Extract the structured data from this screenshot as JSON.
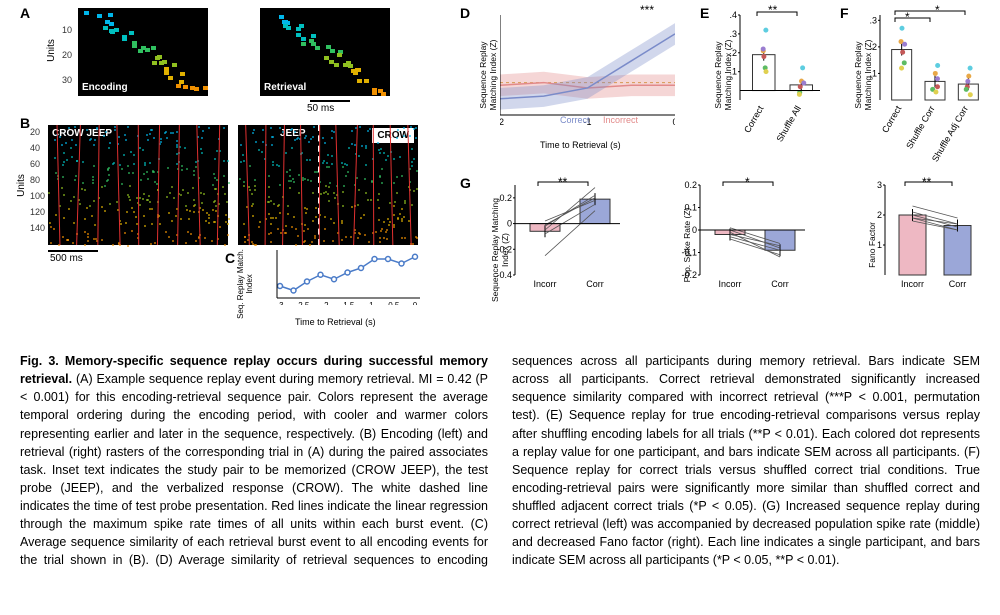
{
  "panel_labels": {
    "A": "A",
    "B": "B",
    "C": "C",
    "D": "D",
    "E": "E",
    "F": "F",
    "G": "G"
  },
  "A": {
    "left_label": "Encoding",
    "right_label": "Retrieval",
    "y_label": "Units",
    "y_ticks": [
      "10",
      "20",
      "30"
    ],
    "scale": "50 ms",
    "colors": [
      "#00b7eb",
      "#00c0c0",
      "#30c060",
      "#90c020",
      "#e0b000",
      "#f09000"
    ],
    "bg": "#000000"
  },
  "B": {
    "left_label": "CROW JEEP",
    "right_probe": "JEEP",
    "right_response": "CROW",
    "y_label": "Units",
    "y_ticks": [
      "20",
      "40",
      "60",
      "80",
      "100",
      "120",
      "140"
    ],
    "scale": "500 ms",
    "red_line_color": "#e03030",
    "bg": "#000000"
  },
  "C": {
    "y_label": "Seq. Replay Match. Index",
    "x_label": "Time to Retrieval (s)",
    "x_ticks": [
      "-3",
      "-2.5",
      "-2",
      "-1.5",
      "-1",
      "-0.5",
      "0"
    ],
    "y_ticks": [
      "0.1",
      "0.2"
    ],
    "values": [
      0.08,
      0.06,
      0.1,
      0.13,
      0.11,
      0.14,
      0.16,
      0.2,
      0.2,
      0.18,
      0.21
    ],
    "line_color": "#4a7bc8",
    "marker_color": "#4a7bc8"
  },
  "D": {
    "y_label": "Sequence Replay Matching Index (Z)",
    "x_label": "Time to Retrieval (s)",
    "x_ticks": [
      "-2",
      "-1",
      "0"
    ],
    "y_ticks": [
      "-.1",
      "0",
      ".1",
      ".2"
    ],
    "correct_label": "Correct",
    "incorrect_label": "Incorrect",
    "correct_color": "#7a8bc9",
    "incorrect_color": "#e28a8a",
    "sig": "***"
  },
  "E": {
    "y_label": "Sequence Replay Matching Index (Z)",
    "categories": [
      "Correct",
      "Shuffle All"
    ],
    "values": [
      0.19,
      0.03
    ],
    "bar_color": "#ffffff",
    "bar_border": "#333333",
    "dot_colors": [
      "#5dcde0",
      "#e8a848",
      "#9a7dd0",
      "#c45858",
      "#5dbb63",
      "#e0d050"
    ],
    "dots_correct": [
      0.32,
      0.21,
      0.22,
      0.18,
      0.12,
      0.1
    ],
    "dots_shuffle": [
      0.12,
      0.05,
      0.04,
      0.02,
      -0.01,
      -0.02
    ],
    "y_ticks": [
      ".1",
      ".2",
      ".3",
      ".4"
    ],
    "sig": "**"
  },
  "F": {
    "y_label": "Sequence Replay Matching Index (Z)",
    "categories": [
      "Correct",
      "Shuffle Corr",
      "Shuffle Adj Corr"
    ],
    "values": [
      0.19,
      0.07,
      0.06
    ],
    "y_ticks": [
      ".1",
      ".2",
      ".3"
    ],
    "sig1": "*",
    "sig2": "*",
    "dot_colors": [
      "#5dcde0",
      "#e8a848",
      "#9a7dd0",
      "#c45858",
      "#5dbb63",
      "#e0d050"
    ]
  },
  "G": {
    "left": {
      "y_label": "Sequence Replay Matching Index (Z)",
      "categories": [
        "Incorr",
        "Corr"
      ],
      "values": [
        -0.06,
        0.19
      ],
      "y_ticks": [
        "-0.4",
        "-0.2",
        "0",
        "0.2"
      ],
      "sig": "**",
      "bar_colors": [
        "#eeb8c3",
        "#9ba7d8"
      ]
    },
    "mid": {
      "y_label": "Pop. Spike Rate (Z)",
      "categories": [
        "Incorr",
        "Corr"
      ],
      "values": [
        -0.02,
        -0.09
      ],
      "y_ticks": [
        "-0.2",
        "-0.1",
        "0",
        "0.1",
        "0.2"
      ],
      "sig": "*",
      "bar_colors": [
        "#eeb8c3",
        "#9ba7d8"
      ]
    },
    "right": {
      "y_label": "Fano Factor",
      "categories": [
        "Incorr",
        "Corr"
      ],
      "values": [
        2.0,
        1.65
      ],
      "y_ticks": [
        "1",
        "2",
        "3"
      ],
      "sig": "**",
      "bar_colors": [
        "#eeb8c3",
        "#9ba7d8"
      ]
    }
  },
  "caption": {
    "title": "Fig. 3. Memory-specific sequence replay occurs during successful memory retrieval.",
    "body": " (A) Example sequence replay event during memory retrieval. MI = 0.42 (P < 0.001) for this encoding-retrieval sequence pair. Colors represent the average temporal ordering during the encoding period, with cooler and warmer colors representing earlier and later in the sequence, respectively. (B) Encoding (left) and retrieval (right) rasters of the corresponding trial in (A) during the paired associates task. Inset text indicates the study pair to be memorized (CROW JEEP), the test probe (JEEP), and the verbalized response (CROW). The white dashed line indicates the time of test probe presentation. Red lines indicate the linear regression through the maximum spike rate times of all units within each burst event. (C) Average sequence similarity of each retrieval burst event to all encoding events for the trial shown in (B). (D) Average similarity of retrieval sequences to encoding sequences across all participants during memory retrieval. Bars indicate SEM across all participants. Correct retrieval demonstrated significantly increased sequence similarity compared with incorrect retrieval (***P < 0.001, permutation test). (E) Sequence replay for true encoding-retrieval comparisons versus replay after shuffling encoding labels for all trials (**P < 0.01). Each colored dot represents a replay value for one participant, and bars indicate SEM across all participants. (F) Sequence replay for correct trials versus shuffled correct trial conditions. True encoding-retrieval pairs were significantly more similar than shuffled correct and shuffled adjacent correct trials (*P < 0.05). (G) Increased sequence replay during correct retrieval (left) was accompanied by decreased population spike rate (middle) and decreased Fano factor (right). Each line indicates a single participant, and bars indicate SEM across all participants (*P < 0.05, **P < 0.01)."
  }
}
